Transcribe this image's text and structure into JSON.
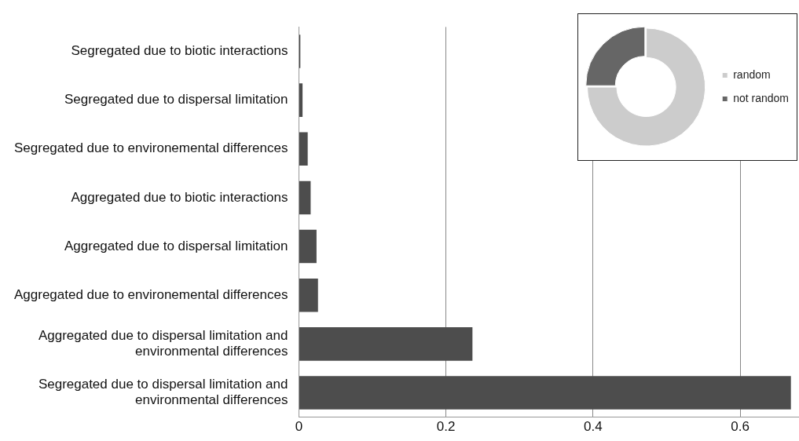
{
  "chart_data": [
    {
      "type": "bar",
      "orientation": "horizontal",
      "categories": [
        "Segregated due to biotic interactions",
        "Segregated due to dispersal limitation",
        "Segregated due to environemental differences",
        "Aggregated due to biotic interactions",
        "Aggregated due to dispersal limitation",
        "Aggregated due to environemental differences",
        "Aggregated due to dispersal limitation and environmental differences",
        "Segregated due to dispersal limitation and environmental differences"
      ],
      "values": [
        0.002,
        0.005,
        0.012,
        0.016,
        0.024,
        0.026,
        0.236,
        0.669
      ],
      "color": "#4d4d4d",
      "xlim": [
        0,
        0.68
      ],
      "xticks": [
        0,
        0.2,
        0.4,
        0.6
      ],
      "grid": "x",
      "legend": false
    },
    {
      "type": "donut",
      "categories": [
        "random",
        "not random"
      ],
      "values": [
        75,
        25
      ],
      "colors": [
        "#cccccc",
        "#666666"
      ],
      "legend": "right"
    }
  ]
}
